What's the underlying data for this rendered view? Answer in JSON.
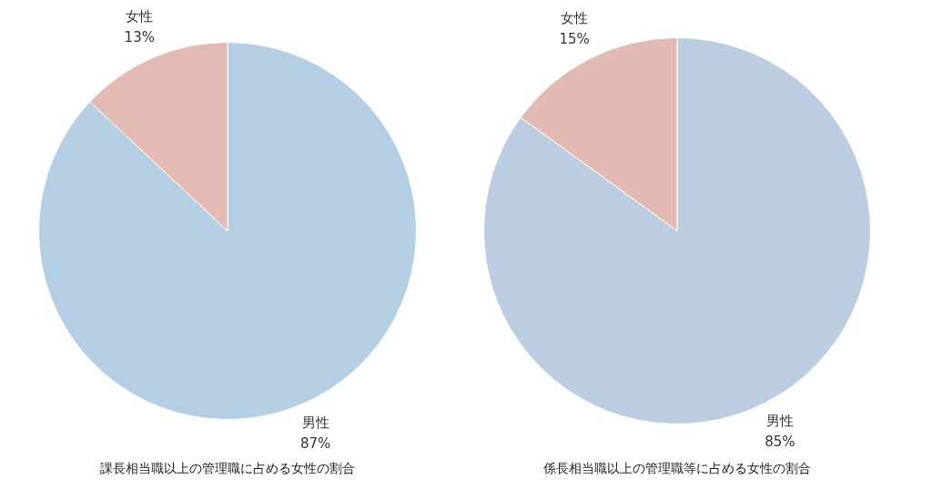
{
  "chart_data": [
    {
      "type": "pie",
      "title": "課長相当職以上の管理職に占める女性の割合",
      "categories": [
        "男性",
        "女性"
      ],
      "values": [
        87,
        13
      ],
      "colors": [
        "#b4cee3",
        "#e3bab4"
      ],
      "value_labels": [
        "87%",
        "13%"
      ]
    },
    {
      "type": "pie",
      "title": "係長相当職以上の管理職等に占める女性の割合",
      "categories": [
        "男性",
        "女性"
      ],
      "values": [
        85,
        15
      ],
      "colors": [
        "#bccde2",
        "#e3b9b3"
      ],
      "value_labels": [
        "85%",
        "15%"
      ]
    }
  ]
}
